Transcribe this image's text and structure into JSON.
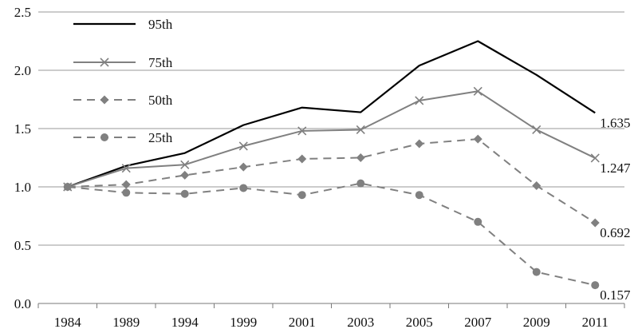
{
  "chart_data": {
    "type": "line",
    "title": "",
    "xlabel": "",
    "ylabel": "",
    "categories": [
      "1984",
      "1989",
      "1994",
      "1999",
      "2001",
      "2003",
      "2005",
      "2007",
      "2009",
      "2011"
    ],
    "ylim": [
      0,
      2.5
    ],
    "yticks": [
      "0.0",
      "0.5",
      "1.0",
      "1.5",
      "2.0",
      "2.5"
    ],
    "grid": "horizontal",
    "legend_position": "top-left",
    "series": [
      {
        "name": "95th",
        "color": "#000000",
        "dash": "solid",
        "marker": "none",
        "values": [
          1.0,
          1.18,
          1.29,
          1.53,
          1.68,
          1.64,
          2.04,
          2.25,
          1.96,
          1.635
        ],
        "end_label": "1.635"
      },
      {
        "name": "75th",
        "color": "#808080",
        "dash": "solid",
        "marker": "x",
        "values": [
          1.0,
          1.16,
          1.19,
          1.35,
          1.48,
          1.49,
          1.74,
          1.82,
          1.49,
          1.247
        ],
        "end_label": "1.247"
      },
      {
        "name": "50th",
        "color": "#808080",
        "dash": "dash",
        "marker": "diamond",
        "values": [
          1.0,
          1.02,
          1.1,
          1.17,
          1.24,
          1.25,
          1.37,
          1.41,
          1.01,
          0.692
        ],
        "end_label": "0.692"
      },
      {
        "name": "25th",
        "color": "#808080",
        "dash": "dash",
        "marker": "circle",
        "values": [
          1.0,
          0.95,
          0.94,
          0.99,
          0.93,
          1.03,
          0.93,
          0.7,
          0.27,
          0.157
        ],
        "end_label": "0.157"
      }
    ]
  }
}
